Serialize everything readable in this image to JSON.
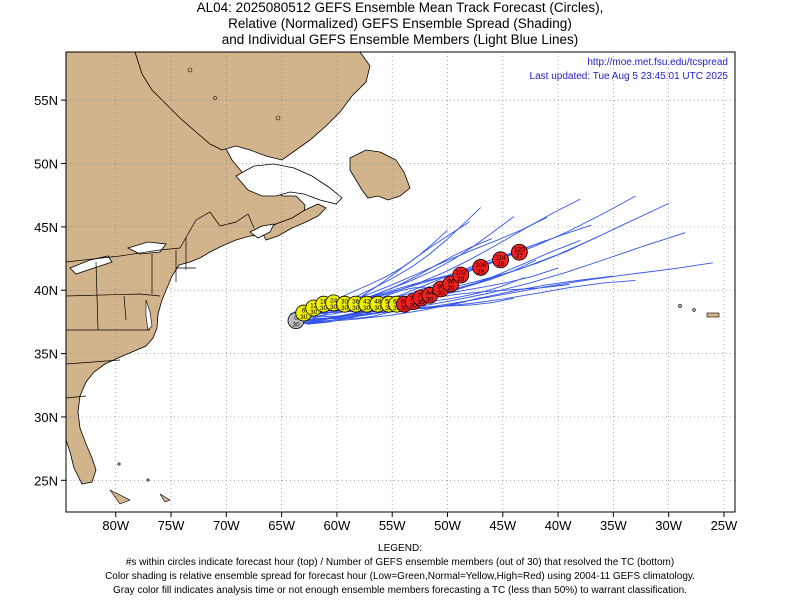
{
  "title": {
    "line1": "AL04: 2025080512 GEFS Ensemble Mean Track Forecast (Circles),",
    "line2": "Relative (Normalized) GEFS Ensemble Spread (Shading)",
    "line3": "and Individual GEFS Ensemble Members (Light Blue Lines)"
  },
  "source": {
    "url": "http://moe.met.fsu.edu/tcspread",
    "updated": "Last updated: Tue Aug 5 23:45:01 UTC 2025"
  },
  "axes": {
    "lon_labels": [
      "80W",
      "75W",
      "70W",
      "65W",
      "60W",
      "55W",
      "50W",
      "45W",
      "40W",
      "35W",
      "30W",
      "25W"
    ],
    "lat_labels": [
      "25N",
      "30N",
      "35N",
      "40N",
      "45N",
      "50N",
      "55N"
    ],
    "lon_range": [
      -84.5,
      -24
    ],
    "lat_range": [
      22.5,
      58.8
    ]
  },
  "colors": {
    "land": "#D2B48C",
    "ocean": "#FFFFFF",
    "members": "#3355EE",
    "low_spread": "#00C000",
    "normal_spread": "#F0F000",
    "high_spread": "#F02020",
    "analysis": "#BEBEBE"
  },
  "mean_track": [
    {
      "hour": "0",
      "members": "30",
      "lat": 37.6,
      "lon": -63.7,
      "color": "gray"
    },
    {
      "hour": "6",
      "members": "30",
      "lat": 38.2,
      "lon": -63.0,
      "color": "yellow"
    },
    {
      "hour": "12",
      "members": "30",
      "lat": 38.6,
      "lon": -62.1,
      "color": "yellow"
    },
    {
      "hour": "18",
      "members": "30",
      "lat": 38.9,
      "lon": -61.2,
      "color": "yellow"
    },
    {
      "hour": "24",
      "members": "30",
      "lat": 39.0,
      "lon": -60.3,
      "color": "yellow"
    },
    {
      "hour": "30",
      "members": "30",
      "lat": 38.9,
      "lon": -59.3,
      "color": "yellow"
    },
    {
      "hour": "36",
      "members": "30",
      "lat": 38.9,
      "lon": -58.3,
      "color": "yellow"
    },
    {
      "hour": "42",
      "members": "30",
      "lat": 38.9,
      "lon": -57.3,
      "color": "yellow"
    },
    {
      "hour": "48",
      "members": "30",
      "lat": 38.9,
      "lon": -56.3,
      "color": "yellow"
    },
    {
      "hour": "54",
      "members": "30",
      "lat": 38.9,
      "lon": -55.3,
      "color": "yellow"
    },
    {
      "hour": "60",
      "members": "30",
      "lat": 38.9,
      "lon": -54.6,
      "color": "yellow"
    },
    {
      "hour": "66",
      "members": "30",
      "lat": 38.9,
      "lon": -53.9,
      "color": "red"
    },
    {
      "hour": "72",
      "members": "30",
      "lat": 39.1,
      "lon": -53.1,
      "color": "red"
    },
    {
      "hour": "78",
      "members": "30",
      "lat": 39.4,
      "lon": -52.4,
      "color": "red"
    },
    {
      "hour": "84",
      "members": "30",
      "lat": 39.6,
      "lon": -51.6,
      "color": "red"
    },
    {
      "hour": "90",
      "members": "30",
      "lat": 40.1,
      "lon": -50.6,
      "color": "red"
    },
    {
      "hour": "96",
      "members": "29",
      "lat": 40.5,
      "lon": -49.7,
      "color": "red"
    },
    {
      "hour": "102",
      "members": "29",
      "lat": 41.2,
      "lon": -48.8,
      "color": "red"
    },
    {
      "hour": "108",
      "members": "28",
      "lat": 41.8,
      "lon": -47.0,
      "color": "red"
    },
    {
      "hour": "114",
      "members": "28",
      "lat": 42.4,
      "lon": -45.2,
      "color": "red"
    },
    {
      "hour": "120",
      "members": "27",
      "lat": 43.0,
      "lon": -43.5,
      "color": "red"
    }
  ],
  "legend": {
    "heading": "LEGEND:",
    "line1": "#s within circles indicate forecast hour (top) / Number of GEFS ensemble members (out of 30) that resolved the TC (bottom)",
    "line2": "Color shading is relative ensemble spread for forecast hour (Low=Green,Normal=Yellow,High=Red) using 2004-11 GEFS climatology.",
    "line3": "Gray color fill indicates analysis time or not enough ensemble members forecasting a TC (less than 50%) to warrant classification."
  }
}
